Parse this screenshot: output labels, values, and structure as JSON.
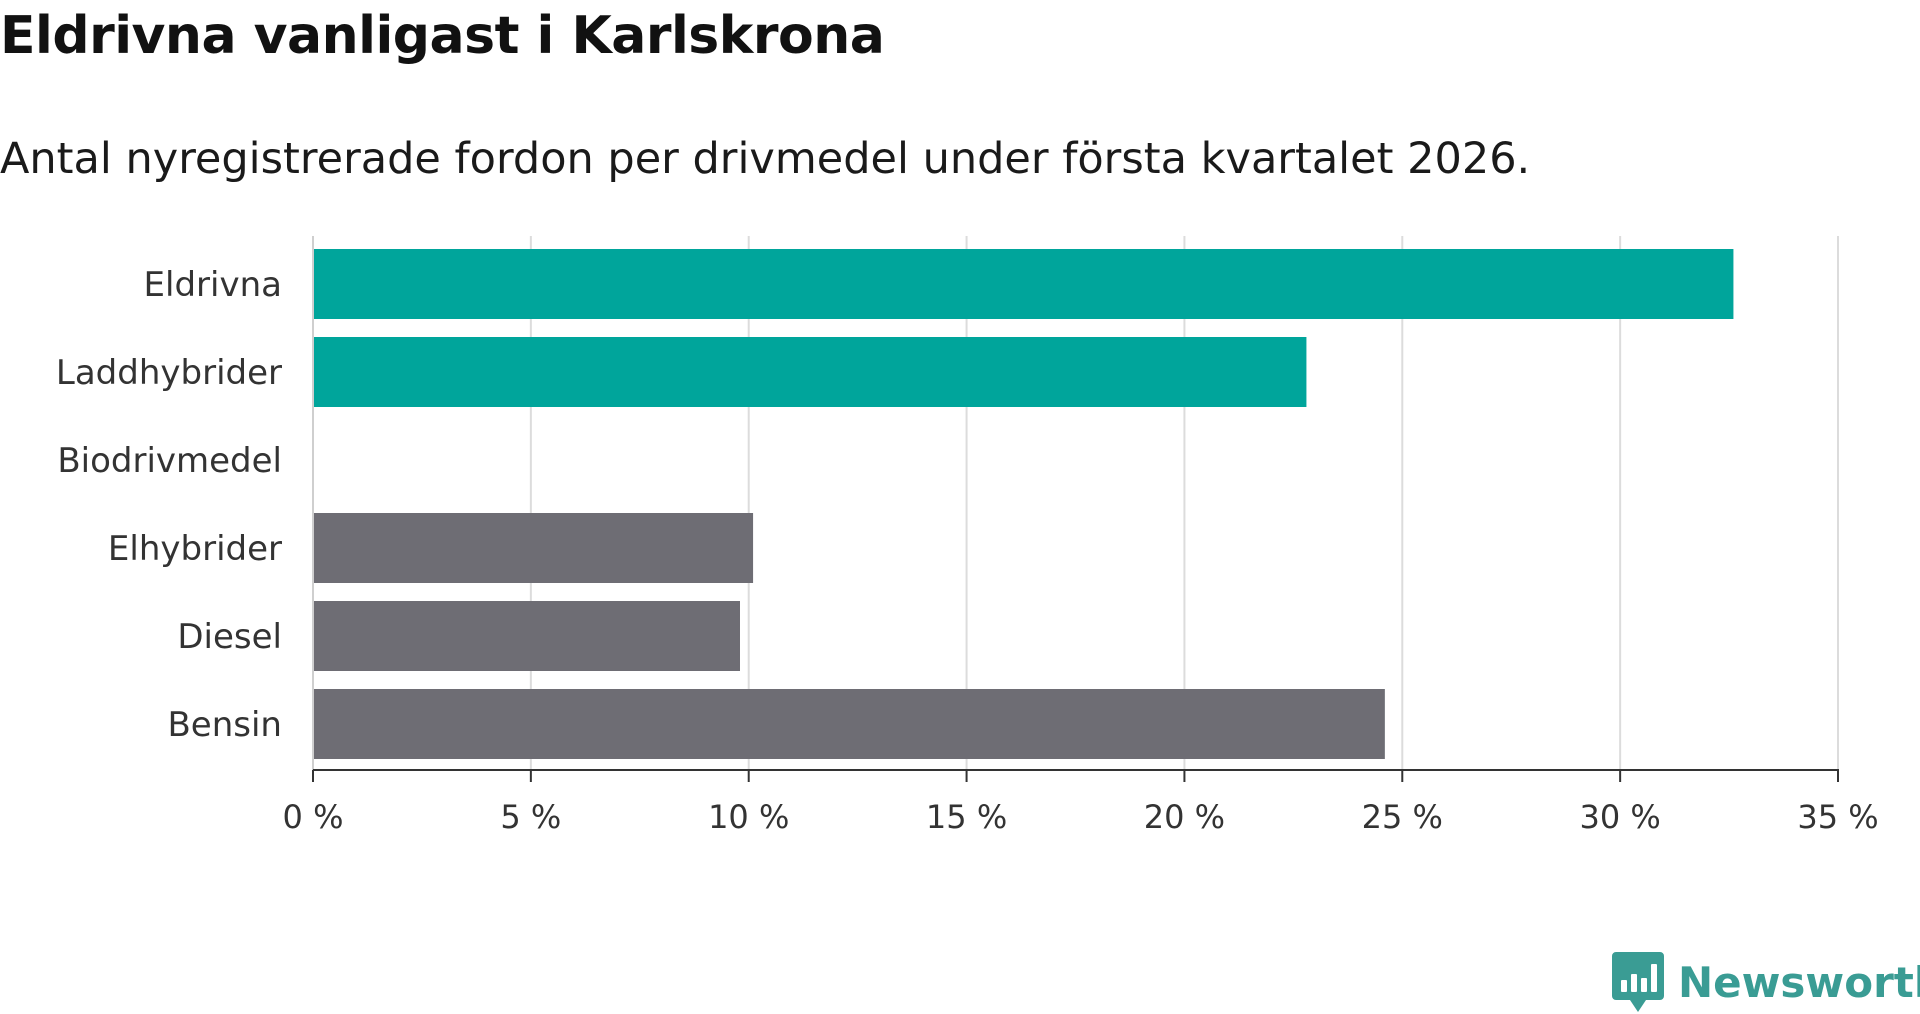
{
  "chart_data": {
    "type": "bar",
    "orientation": "horizontal",
    "title": "Eldrivna vanligast i Karlskrona",
    "subtitle": "Antal nyregistrerade fordon per drivmedel under första kvartalet 2026.",
    "xlabel": "",
    "ylabel": "",
    "xlim": [
      0,
      35
    ],
    "xticks": [
      0,
      5,
      10,
      15,
      20,
      25,
      30,
      35
    ],
    "xtick_labels": [
      "0 %",
      "5 %",
      "10 %",
      "15 %",
      "20 %",
      "25 %",
      "30 %",
      "35 %"
    ],
    "grid": true,
    "categories": [
      "Eldrivna",
      "Laddhybrider",
      "Biodrivmedel",
      "Elhybrider",
      "Diesel",
      "Bensin"
    ],
    "values": [
      32.6,
      22.8,
      0,
      10.1,
      9.8,
      24.6
    ],
    "bar_colors": [
      "#00a59b",
      "#00a59b",
      "#00a59b",
      "#6e6d74",
      "#6e6d74",
      "#6e6d74"
    ]
  },
  "brand": {
    "name": "Newsworthy",
    "icon": "newsworthy-logo-icon",
    "color": "#3a9c94"
  }
}
